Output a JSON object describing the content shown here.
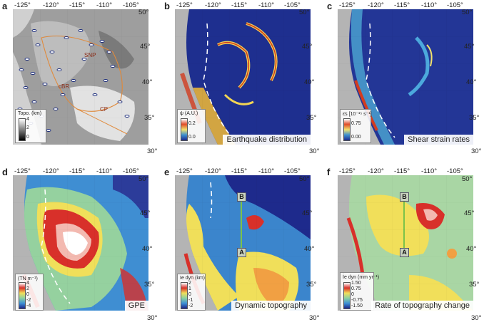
{
  "panels": {
    "a": {
      "label": "a",
      "colorbar_title": "Topo. (km)",
      "colorbar_ticks": [
        "4",
        "2",
        "0"
      ],
      "regions": {
        "snp": "SNP",
        "cbr": "cBR",
        "cp": "CP"
      }
    },
    "b": {
      "label": "b",
      "caption": "Earthquake distribution",
      "colorbar_title": "ψ (A.U.)",
      "colorbar_ticks": [
        "0.2",
        "0.0"
      ]
    },
    "c": {
      "label": "c",
      "caption": "Shear strain rates",
      "colorbar_title": "ε̇s [10⁻¹⁵ s⁻¹]",
      "colorbar_ticks": [
        "0.75",
        "0.00"
      ]
    },
    "d": {
      "label": "d",
      "caption": "GPE",
      "colorbar_title": "(TN m⁻¹)",
      "colorbar_ticks": [
        "4",
        "2",
        "0",
        "-2",
        "-4"
      ]
    },
    "e": {
      "label": "e",
      "caption": "Dynamic topography",
      "colorbar_title": "Ie dyn (km)",
      "colorbar_ticks": [
        "2",
        "1",
        "0",
        "-1",
        "-2"
      ],
      "profile": {
        "start": "B",
        "end": "A"
      }
    },
    "f": {
      "label": "f",
      "caption": "Rate of topography change",
      "colorbar_title": "İe dyn (mm yr⁻¹)",
      "colorbar_ticks": [
        "1.50",
        "0.75",
        "0",
        "-0.75",
        "-1.50"
      ],
      "profile": {
        "start": "B",
        "end": "A"
      }
    }
  },
  "axes": {
    "longitude_ticks": [
      "-125°",
      "-120°",
      "-115°",
      "-110°",
      "-105°"
    ],
    "latitude_ticks": [
      "50°",
      "45°",
      "40°",
      "35°",
      "30°"
    ]
  },
  "colors": {
    "ocean_gray": "#b9b9b9",
    "boundary_orange": "#e08a3c",
    "dashed_line": "#ffffff",
    "profile_line": "#7cc24a"
  }
}
